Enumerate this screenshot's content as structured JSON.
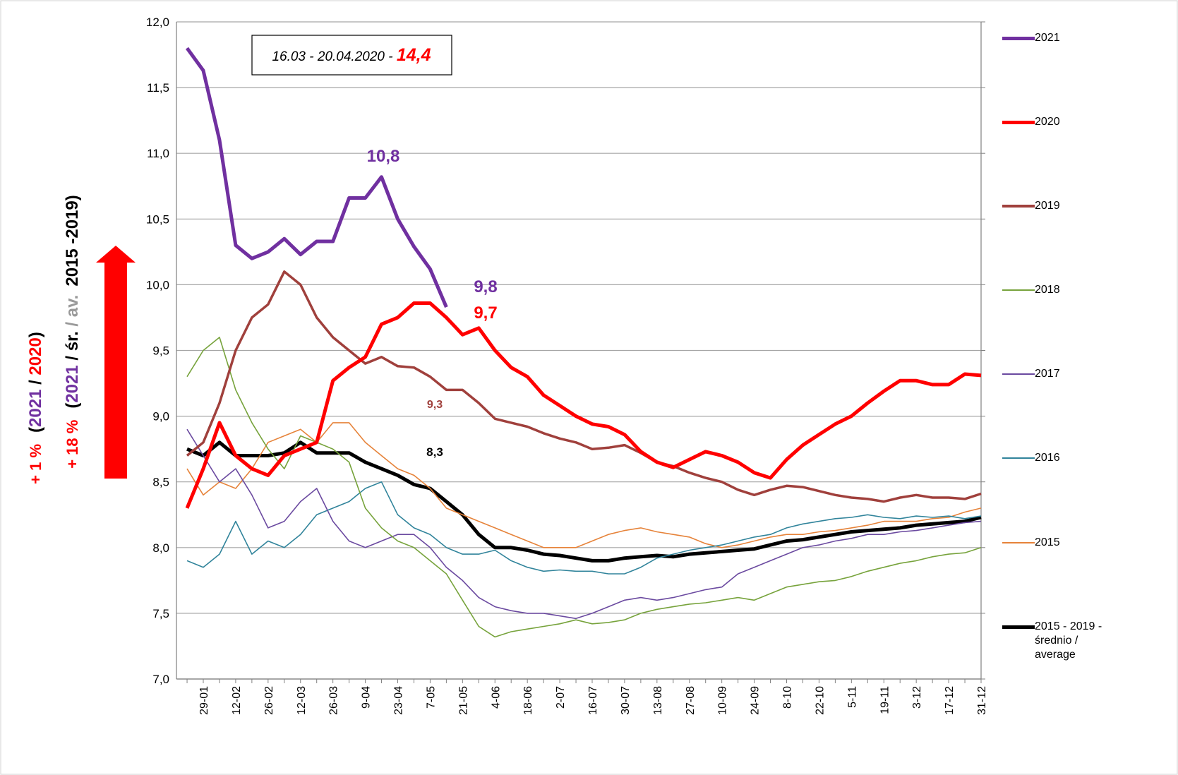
{
  "chart_data": {
    "type": "line",
    "categories": [
      null,
      "29-01",
      null,
      "12-02",
      null,
      "26-02",
      null,
      "12-03",
      null,
      "26-03",
      null,
      "9-04",
      null,
      "23-04",
      null,
      "7-05",
      null,
      "21-05",
      null,
      "4-06",
      null,
      "18-06",
      null,
      "2-07",
      null,
      "16-07",
      null,
      "30-07",
      null,
      "13-08",
      null,
      "27-08",
      null,
      "10-09",
      null,
      "24-09",
      null,
      "8-10",
      null,
      "22-10",
      null,
      "5-11",
      null,
      "19-11",
      null,
      "3-12",
      null,
      "17-12",
      null,
      "31-12"
    ],
    "ylim": [
      7,
      12
    ],
    "yticks": [
      {
        "value": 7,
        "label": "7,0"
      },
      {
        "value": 7.5,
        "label": "7,5"
      },
      {
        "value": 8,
        "label": "8,0"
      },
      {
        "value": 8.5,
        "label": "8,5"
      },
      {
        "value": 9,
        "label": "9,0"
      },
      {
        "value": 9.5,
        "label": "9,5"
      },
      {
        "value": 10,
        "label": "10,0"
      },
      {
        "value": 10.5,
        "label": "10,5"
      },
      {
        "value": 11,
        "label": "11,0"
      },
      {
        "value": 11.5,
        "label": "11,5"
      },
      {
        "value": 12,
        "label": "12,0"
      }
    ],
    "grid": true,
    "legend": "right",
    "series": [
      {
        "name": "2021",
        "color": "#7030a0",
        "line_width": 5,
        "values": [
          11.8,
          11.63,
          11.1,
          10.3,
          10.2,
          10.25,
          10.35,
          10.23,
          10.33,
          10.33,
          10.66,
          10.66,
          10.82,
          10.5,
          10.29,
          10.12,
          9.83,
          null,
          null,
          null,
          null,
          null,
          null,
          null,
          null,
          null,
          null,
          null,
          null,
          null,
          null,
          null,
          null,
          null,
          null,
          null,
          null,
          null,
          null,
          null,
          null,
          null,
          null,
          null,
          null,
          null,
          null,
          null,
          null,
          null
        ]
      },
      {
        "name": "2020",
        "color": "#ff0000",
        "line_width": 5,
        "values": [
          8.3,
          8.6,
          8.95,
          8.7,
          8.6,
          8.55,
          8.7,
          8.75,
          8.8,
          9.27,
          9.37,
          9.45,
          9.7,
          9.75,
          9.86,
          9.86,
          9.75,
          9.62,
          9.67,
          9.5,
          9.37,
          9.3,
          9.16,
          9.08,
          9.0,
          8.94,
          8.92,
          8.86,
          8.73,
          8.65,
          8.61,
          8.67,
          8.73,
          8.7,
          8.65,
          8.57,
          8.53,
          8.67,
          8.78,
          8.86,
          8.94,
          9.0,
          9.1,
          9.19,
          9.27,
          9.27,
          9.24,
          9.24,
          9.32,
          9.31
        ]
      },
      {
        "name": "2019",
        "color": "#a0403c",
        "line_width": 3.5,
        "values": [
          8.7,
          8.8,
          9.1,
          9.5,
          9.75,
          9.85,
          10.1,
          10.0,
          9.75,
          9.6,
          9.5,
          9.4,
          9.45,
          9.38,
          9.37,
          9.3,
          9.2,
          9.2,
          9.1,
          8.98,
          8.95,
          8.92,
          8.87,
          8.83,
          8.8,
          8.75,
          8.76,
          8.78,
          8.72,
          8.65,
          8.62,
          8.57,
          8.53,
          8.5,
          8.44,
          8.4,
          8.44,
          8.47,
          8.46,
          8.43,
          8.4,
          8.38,
          8.37,
          8.35,
          8.38,
          8.4,
          8.38,
          8.38,
          8.37,
          8.41
        ]
      },
      {
        "name": "2018",
        "color": "#77a33c",
        "line_width": 1.6,
        "values": [
          9.3,
          9.5,
          9.6,
          9.2,
          8.95,
          8.75,
          8.6,
          8.85,
          8.8,
          8.75,
          8.65,
          8.3,
          8.15,
          8.05,
          8.0,
          7.9,
          7.8,
          7.6,
          7.4,
          7.32,
          7.36,
          7.38,
          7.4,
          7.42,
          7.45,
          7.42,
          7.43,
          7.45,
          7.5,
          7.53,
          7.55,
          7.57,
          7.58,
          7.6,
          7.62,
          7.6,
          7.65,
          7.7,
          7.72,
          7.74,
          7.75,
          7.78,
          7.82,
          7.85,
          7.88,
          7.9,
          7.93,
          7.95,
          7.96,
          8.0
        ]
      },
      {
        "name": "2017",
        "color": "#6b4aa0",
        "line_width": 1.6,
        "values": [
          8.9,
          8.7,
          8.5,
          8.6,
          8.4,
          8.15,
          8.2,
          8.35,
          8.45,
          8.2,
          8.05,
          8.0,
          8.05,
          8.1,
          8.1,
          8.0,
          7.85,
          7.75,
          7.62,
          7.55,
          7.52,
          7.5,
          7.5,
          7.48,
          7.46,
          7.5,
          7.55,
          7.6,
          7.62,
          7.6,
          7.62,
          7.65,
          7.68,
          7.7,
          7.8,
          7.85,
          7.9,
          7.95,
          8.0,
          8.02,
          8.05,
          8.07,
          8.1,
          8.1,
          8.12,
          8.13,
          8.15,
          8.17,
          8.19,
          8.2
        ]
      },
      {
        "name": "2016",
        "color": "#31849b",
        "line_width": 1.6,
        "values": [
          7.9,
          7.85,
          7.95,
          8.2,
          7.95,
          8.05,
          8.0,
          8.1,
          8.25,
          8.3,
          8.35,
          8.45,
          8.5,
          8.25,
          8.15,
          8.1,
          8.0,
          7.95,
          7.95,
          7.98,
          7.9,
          7.85,
          7.82,
          7.83,
          7.82,
          7.82,
          7.8,
          7.8,
          7.85,
          7.92,
          7.95,
          7.98,
          8.0,
          8.02,
          8.05,
          8.08,
          8.1,
          8.15,
          8.18,
          8.2,
          8.22,
          8.23,
          8.25,
          8.23,
          8.22,
          8.24,
          8.23,
          8.24,
          8.22,
          8.24
        ]
      },
      {
        "name": "2015",
        "color": "#e6833a",
        "line_width": 1.6,
        "values": [
          8.6,
          8.4,
          8.5,
          8.45,
          8.6,
          8.8,
          8.85,
          8.9,
          8.8,
          8.95,
          8.95,
          8.8,
          8.7,
          8.6,
          8.55,
          8.45,
          8.3,
          8.25,
          8.2,
          8.15,
          8.1,
          8.05,
          8.0,
          8.0,
          8.0,
          8.05,
          8.1,
          8.13,
          8.15,
          8.12,
          8.1,
          8.08,
          8.03,
          8.0,
          8.02,
          8.05,
          8.08,
          8.1,
          8.1,
          8.12,
          8.13,
          8.15,
          8.17,
          8.2,
          8.2,
          8.2,
          8.22,
          8.23,
          8.27,
          8.3
        ]
      },
      {
        "name": "2015 - 2019 - średnio / average",
        "color": "#000000",
        "line_width": 5,
        "values": [
          8.75,
          8.7,
          8.8,
          8.7,
          8.7,
          8.7,
          8.72,
          8.8,
          8.72,
          8.72,
          8.72,
          8.65,
          8.6,
          8.55,
          8.48,
          8.45,
          8.35,
          8.25,
          8.1,
          8.0,
          8.0,
          7.98,
          7.95,
          7.94,
          7.92,
          7.9,
          7.9,
          7.92,
          7.93,
          7.94,
          7.93,
          7.95,
          7.96,
          7.97,
          7.98,
          7.99,
          8.02,
          8.05,
          8.06,
          8.08,
          8.1,
          8.12,
          8.13,
          8.14,
          8.15,
          8.17,
          8.18,
          8.19,
          8.2,
          8.23
        ]
      }
    ],
    "annotations": [
      {
        "text": "10,8",
        "color": "#7030a0"
      },
      {
        "text": "9,8",
        "color": "#7030a0"
      },
      {
        "text": "9,7",
        "color": "#ff0000"
      },
      {
        "text": "9,3",
        "color": "#a0403c"
      },
      {
        "text": "8,3",
        "color": "#000000"
      }
    ],
    "box_note": [
      {
        "text": "16.03 - 20.04.2020 - ",
        "color": "#000000"
      },
      {
        "text": "14,4",
        "color": "#ff0000"
      }
    ],
    "side_notes": [
      [
        {
          "text": "+ 1 %",
          "color": "#ff0000"
        },
        {
          "text": "(",
          "color": "#000000"
        },
        {
          "text": "2021",
          "color": "#7030a0"
        },
        {
          "text": " / ",
          "color": "#000000"
        },
        {
          "text": "2020",
          "color": "#ff0000"
        },
        {
          "text": ")",
          "color": "#000000"
        }
      ],
      [
        {
          "text": "+ 18 %",
          "color": "#ff0000"
        },
        {
          "text": "(",
          "color": "#000000"
        },
        {
          "text": "2021",
          "color": "#7030a0"
        },
        {
          "text": " / śr. ",
          "color": "#000000"
        },
        {
          "text": "/ av.",
          "color": "#999999"
        },
        {
          "text": "2015 -2019)",
          "color": "#000000"
        }
      ]
    ]
  }
}
